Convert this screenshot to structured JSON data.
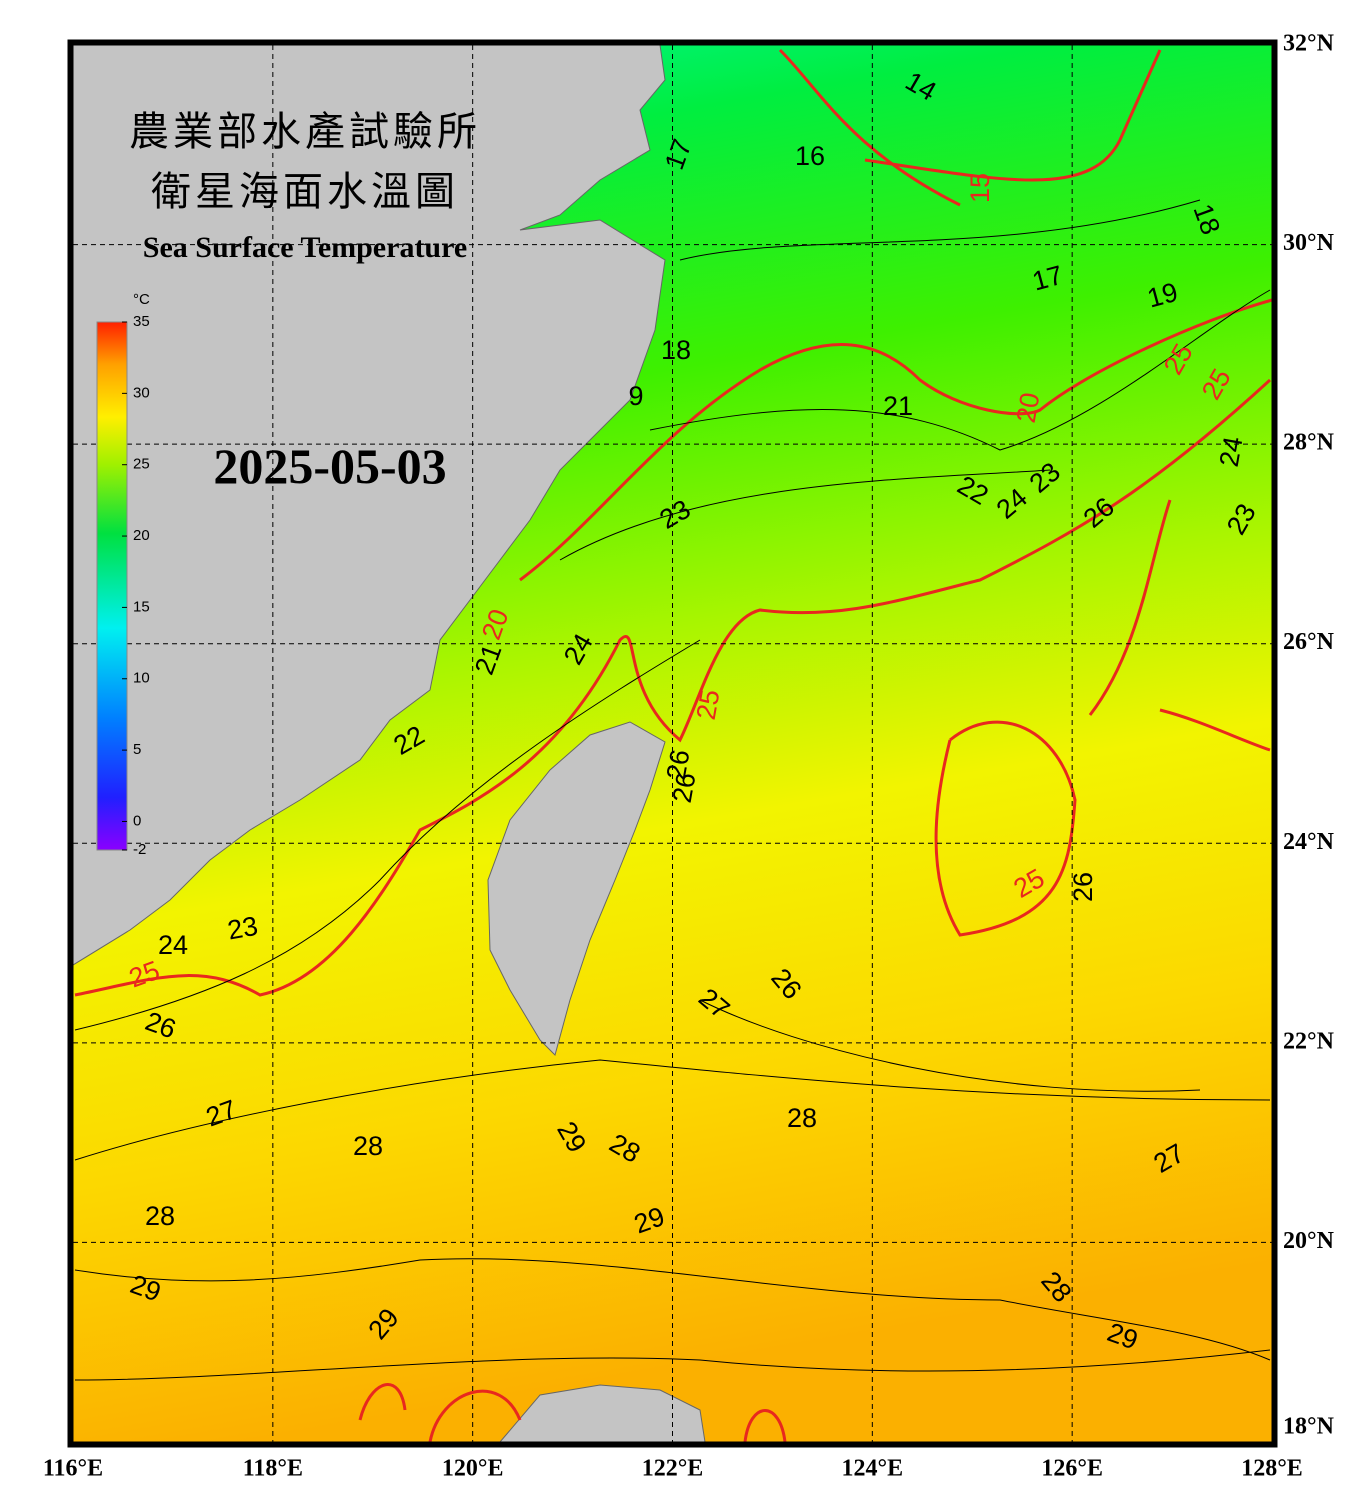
{
  "title_zh_1": "農業部水產試驗所",
  "title_zh_2": "衛星海面水溫圖",
  "title_en": "Sea Surface Temperature",
  "date": "2025-05-03",
  "map": {
    "xlim": [
      116,
      128
    ],
    "ylim": [
      18,
      32
    ],
    "xticks": [
      {
        "value": 116,
        "label": "116°E"
      },
      {
        "value": 118,
        "label": "118°E"
      },
      {
        "value": 120,
        "label": "120°E"
      },
      {
        "value": 122,
        "label": "122°E"
      },
      {
        "value": 124,
        "label": "124°E"
      },
      {
        "value": 126,
        "label": "126°E"
      },
      {
        "value": 128,
        "label": "128°E"
      }
    ],
    "yticks": [
      {
        "value": 18,
        "label": "18°N"
      },
      {
        "value": 20,
        "label": "20°N"
      },
      {
        "value": 22,
        "label": "22°N"
      },
      {
        "value": 24,
        "label": "24°N"
      },
      {
        "value": 26,
        "label": "26°N"
      },
      {
        "value": 28,
        "label": "28°N"
      },
      {
        "value": 30,
        "label": "30°N"
      },
      {
        "value": 32,
        "label": "32°N"
      }
    ],
    "grid": true
  },
  "colorbar": {
    "unit": "°C",
    "lim": [
      -2,
      35
    ],
    "ticks": [
      35,
      30,
      25,
      20,
      15,
      10,
      5,
      0,
      -2
    ]
  },
  "contour_labels": [
    14,
    16,
    17,
    15,
    18,
    17,
    19,
    18,
    9,
    21,
    25,
    25,
    20,
    24,
    22,
    24,
    23,
    26,
    23,
    23,
    24,
    20,
    21,
    25,
    22,
    26,
    26,
    25,
    26,
    23,
    24,
    25,
    26,
    27,
    26,
    27,
    28,
    29,
    28,
    28,
    27,
    28,
    29,
    28,
    29,
    29,
    29
  ]
}
